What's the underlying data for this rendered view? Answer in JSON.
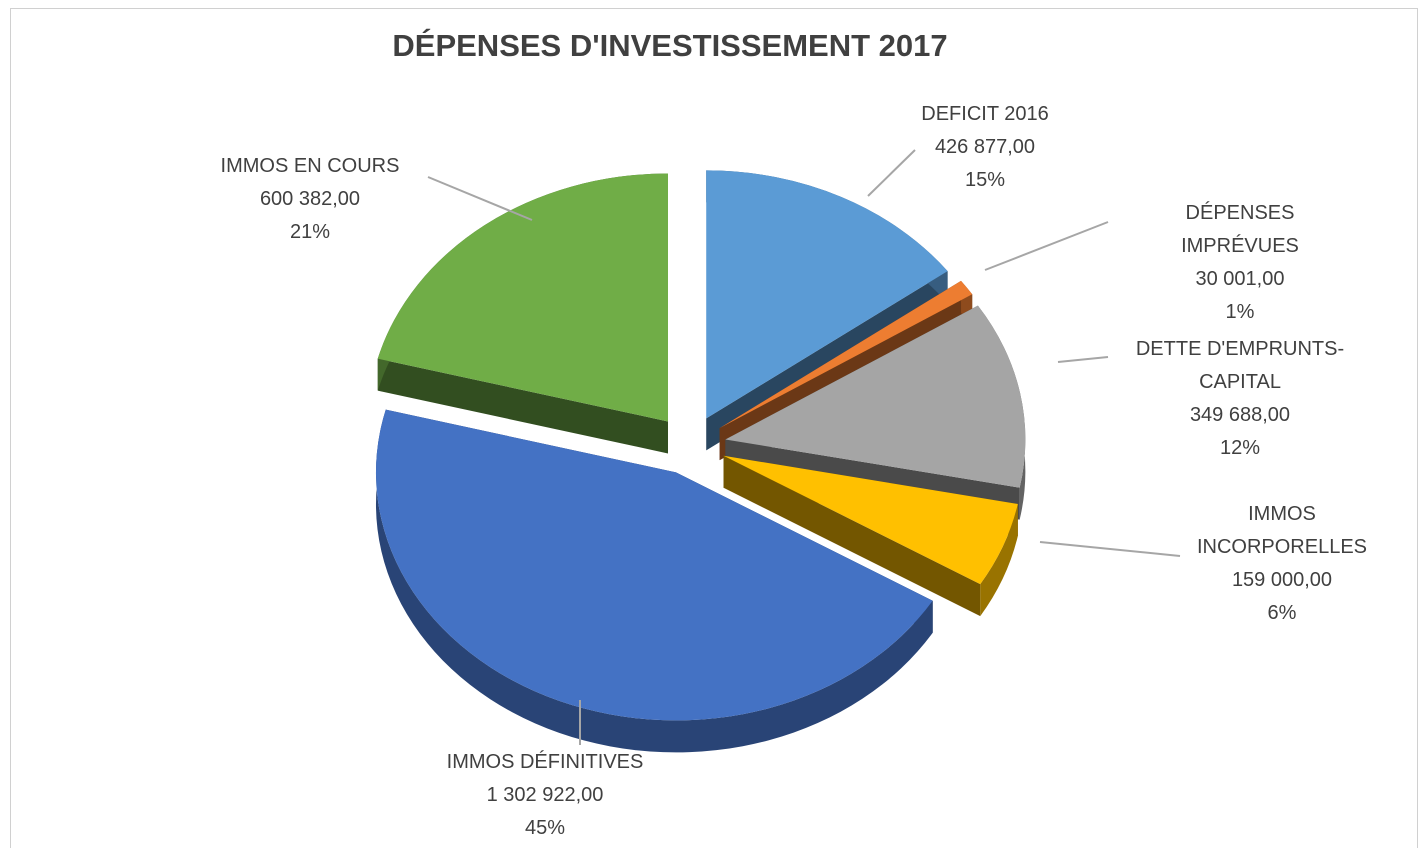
{
  "chart_data": {
    "type": "pie",
    "title": "DÉPENSES D'INVESTISSEMENT 2017",
    "categories": [
      "DEFICIT 2016",
      "DÉPENSES IMPRÉVUES",
      "DETTE D'EMPRUNTS-CAPITAL",
      "IMMOS INCORPORELLES",
      "IMMOS DÉFINITIVES",
      "IMMOS EN COURS"
    ],
    "values": [
      426877,
      30001,
      349688,
      159000,
      1302922,
      600382
    ],
    "value_labels": [
      "426 877,00",
      "30 001,00",
      "349 688,00",
      "159 000,00",
      "1 302 922,00",
      "600 382,00"
    ],
    "percent_labels": [
      "15%",
      "1%",
      "12%",
      "6%",
      "45%",
      "21%"
    ],
    "colors": [
      "#5b9bd5",
      "#ed7d31",
      "#a5a5a5",
      "#ffc000",
      "#4472c4",
      "#70ad47"
    ]
  }
}
